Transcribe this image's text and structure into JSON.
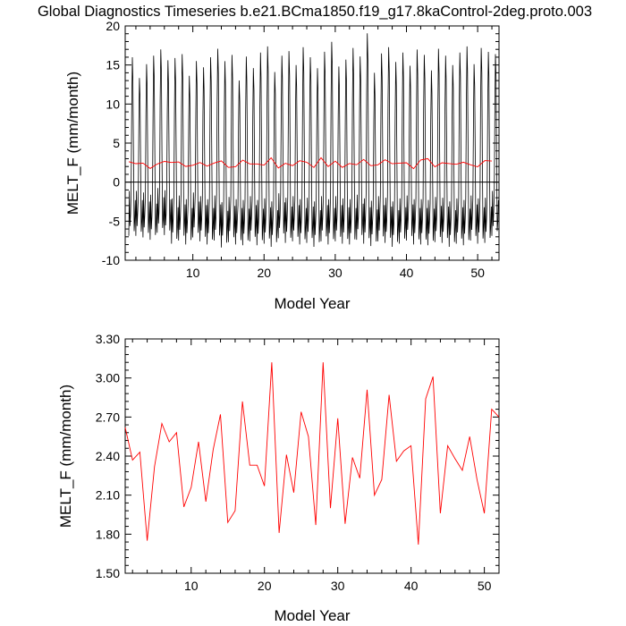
{
  "title": "Global Diagnostics Timeseries b.e21.BCma1850.f19_g17.8kaControl-2deg.proto.003",
  "chart_data": [
    {
      "type": "line",
      "xlabel": "Model Year",
      "ylabel": "MELT_F (mm/month)",
      "xlim": [
        0.5,
        53
      ],
      "ylim": [
        -10,
        20
      ],
      "xticks": [
        10,
        20,
        30,
        40,
        50
      ],
      "yticks": [
        -10,
        -5,
        0,
        5,
        10,
        15,
        20
      ],
      "ytick_labels": [
        "-10",
        "-5",
        "0",
        "5",
        "10",
        "15",
        "20"
      ],
      "zero_line": true,
      "monthly_peaks": [
        16.2,
        13.5,
        15.3,
        16.4,
        17.2,
        15.8,
        16.1,
        16.6,
        13.8,
        15.7,
        14.9,
        16.2,
        17.3,
        15.7,
        16.5,
        13.2,
        16.3,
        14.8,
        16.8,
        17.6,
        14.3,
        16.4,
        17.0,
        15.2,
        17.5,
        16.2,
        14.8,
        16.9,
        18.2,
        15.0,
        15.9,
        17.4,
        16.3,
        19.3,
        14.2,
        16.7,
        17.5,
        15.6,
        16.8,
        15.1,
        17.2,
        16.5,
        14.5,
        17.3,
        16.4,
        15.2,
        16.8,
        17.6,
        15.3,
        17.4,
        16.9,
        16.6
      ],
      "monthly_troughs": [
        -6.9,
        -6.9,
        -7.1,
        -7.4,
        -6.5,
        -6.8,
        -7.9,
        -7.5,
        -8.0,
        -7.1,
        -7.6,
        -8.0,
        -7.5,
        -8.4,
        -7.7,
        -8.0,
        -8.1,
        -7.6,
        -8.1,
        -7.9,
        -8.3,
        -7.2,
        -7.8,
        -7.6,
        -8.0,
        -7.8,
        -8.3,
        -7.6,
        -8.0,
        -7.6,
        -7.9,
        -8.0,
        -7.4,
        -7.9,
        -8.2,
        -7.6,
        -7.8,
        -8.3,
        -7.9,
        -7.5,
        -8.0,
        -8.0,
        -8.1,
        -7.7,
        -7.8,
        -8.3,
        -7.9,
        -8.1,
        -7.5,
        -7.9,
        -7.8,
        -6.9
      ],
      "series": [
        {
          "color": "#000000",
          "description_values": "monthly oscillation built from monthly_peaks and monthly_troughs"
        },
        {
          "color": "#ff0000",
          "x": [
            1,
            2,
            3,
            4,
            5,
            6,
            7,
            8,
            9,
            10,
            11,
            12,
            13,
            14,
            15,
            16,
            17,
            18,
            19,
            20,
            21,
            22,
            23,
            24,
            25,
            26,
            27,
            28,
            29,
            30,
            31,
            32,
            33,
            34,
            35,
            36,
            37,
            38,
            39,
            40,
            41,
            42,
            43,
            44,
            45,
            46,
            47,
            48,
            49,
            50,
            51,
            52
          ],
          "y": [
            2.62,
            2.37,
            2.43,
            1.75,
            2.32,
            2.65,
            2.51,
            2.58,
            2.01,
            2.16,
            2.51,
            2.05,
            2.45,
            2.72,
            1.89,
            1.98,
            2.82,
            2.33,
            2.33,
            2.17,
            3.12,
            1.81,
            2.41,
            2.12,
            2.74,
            2.55,
            1.87,
            3.12,
            2.0,
            2.69,
            1.88,
            2.39,
            2.23,
            2.91,
            2.1,
            2.22,
            2.87,
            2.36,
            2.44,
            2.48,
            1.72,
            2.84,
            3.01,
            1.96,
            2.48,
            2.38,
            2.29,
            2.55,
            2.22,
            1.96,
            2.76,
            2.7
          ]
        }
      ]
    },
    {
      "type": "line",
      "xlabel": "Model Year",
      "ylabel": "MELT_F (mm/month)",
      "xlim": [
        1,
        52
      ],
      "ylim": [
        1.5,
        3.3
      ],
      "xticks": [
        10,
        20,
        30,
        40,
        50
      ],
      "yticks": [
        1.5,
        1.8,
        2.1,
        2.4,
        2.7,
        3.0,
        3.3
      ],
      "ytick_labels": [
        "1.50",
        "1.80",
        "2.10",
        "2.40",
        "2.70",
        "3.00",
        "3.30"
      ],
      "series": [
        {
          "color": "#ff0000",
          "x": [
            1,
            2,
            3,
            4,
            5,
            6,
            7,
            8,
            9,
            10,
            11,
            12,
            13,
            14,
            15,
            16,
            17,
            18,
            19,
            20,
            21,
            22,
            23,
            24,
            25,
            26,
            27,
            28,
            29,
            30,
            31,
            32,
            33,
            34,
            35,
            36,
            37,
            38,
            39,
            40,
            41,
            42,
            43,
            44,
            45,
            46,
            47,
            48,
            49,
            50,
            51,
            52
          ],
          "y": [
            2.62,
            2.37,
            2.43,
            1.75,
            2.32,
            2.65,
            2.51,
            2.58,
            2.01,
            2.16,
            2.51,
            2.05,
            2.45,
            2.72,
            1.89,
            1.98,
            2.82,
            2.33,
            2.33,
            2.17,
            3.12,
            1.81,
            2.41,
            2.12,
            2.74,
            2.55,
            1.87,
            3.12,
            2.0,
            2.69,
            1.88,
            2.39,
            2.23,
            2.91,
            2.1,
            2.22,
            2.87,
            2.36,
            2.44,
            2.48,
            1.72,
            2.84,
            3.01,
            1.96,
            2.48,
            2.38,
            2.29,
            2.55,
            2.22,
            1.96,
            2.76,
            2.7
          ]
        }
      ]
    }
  ]
}
